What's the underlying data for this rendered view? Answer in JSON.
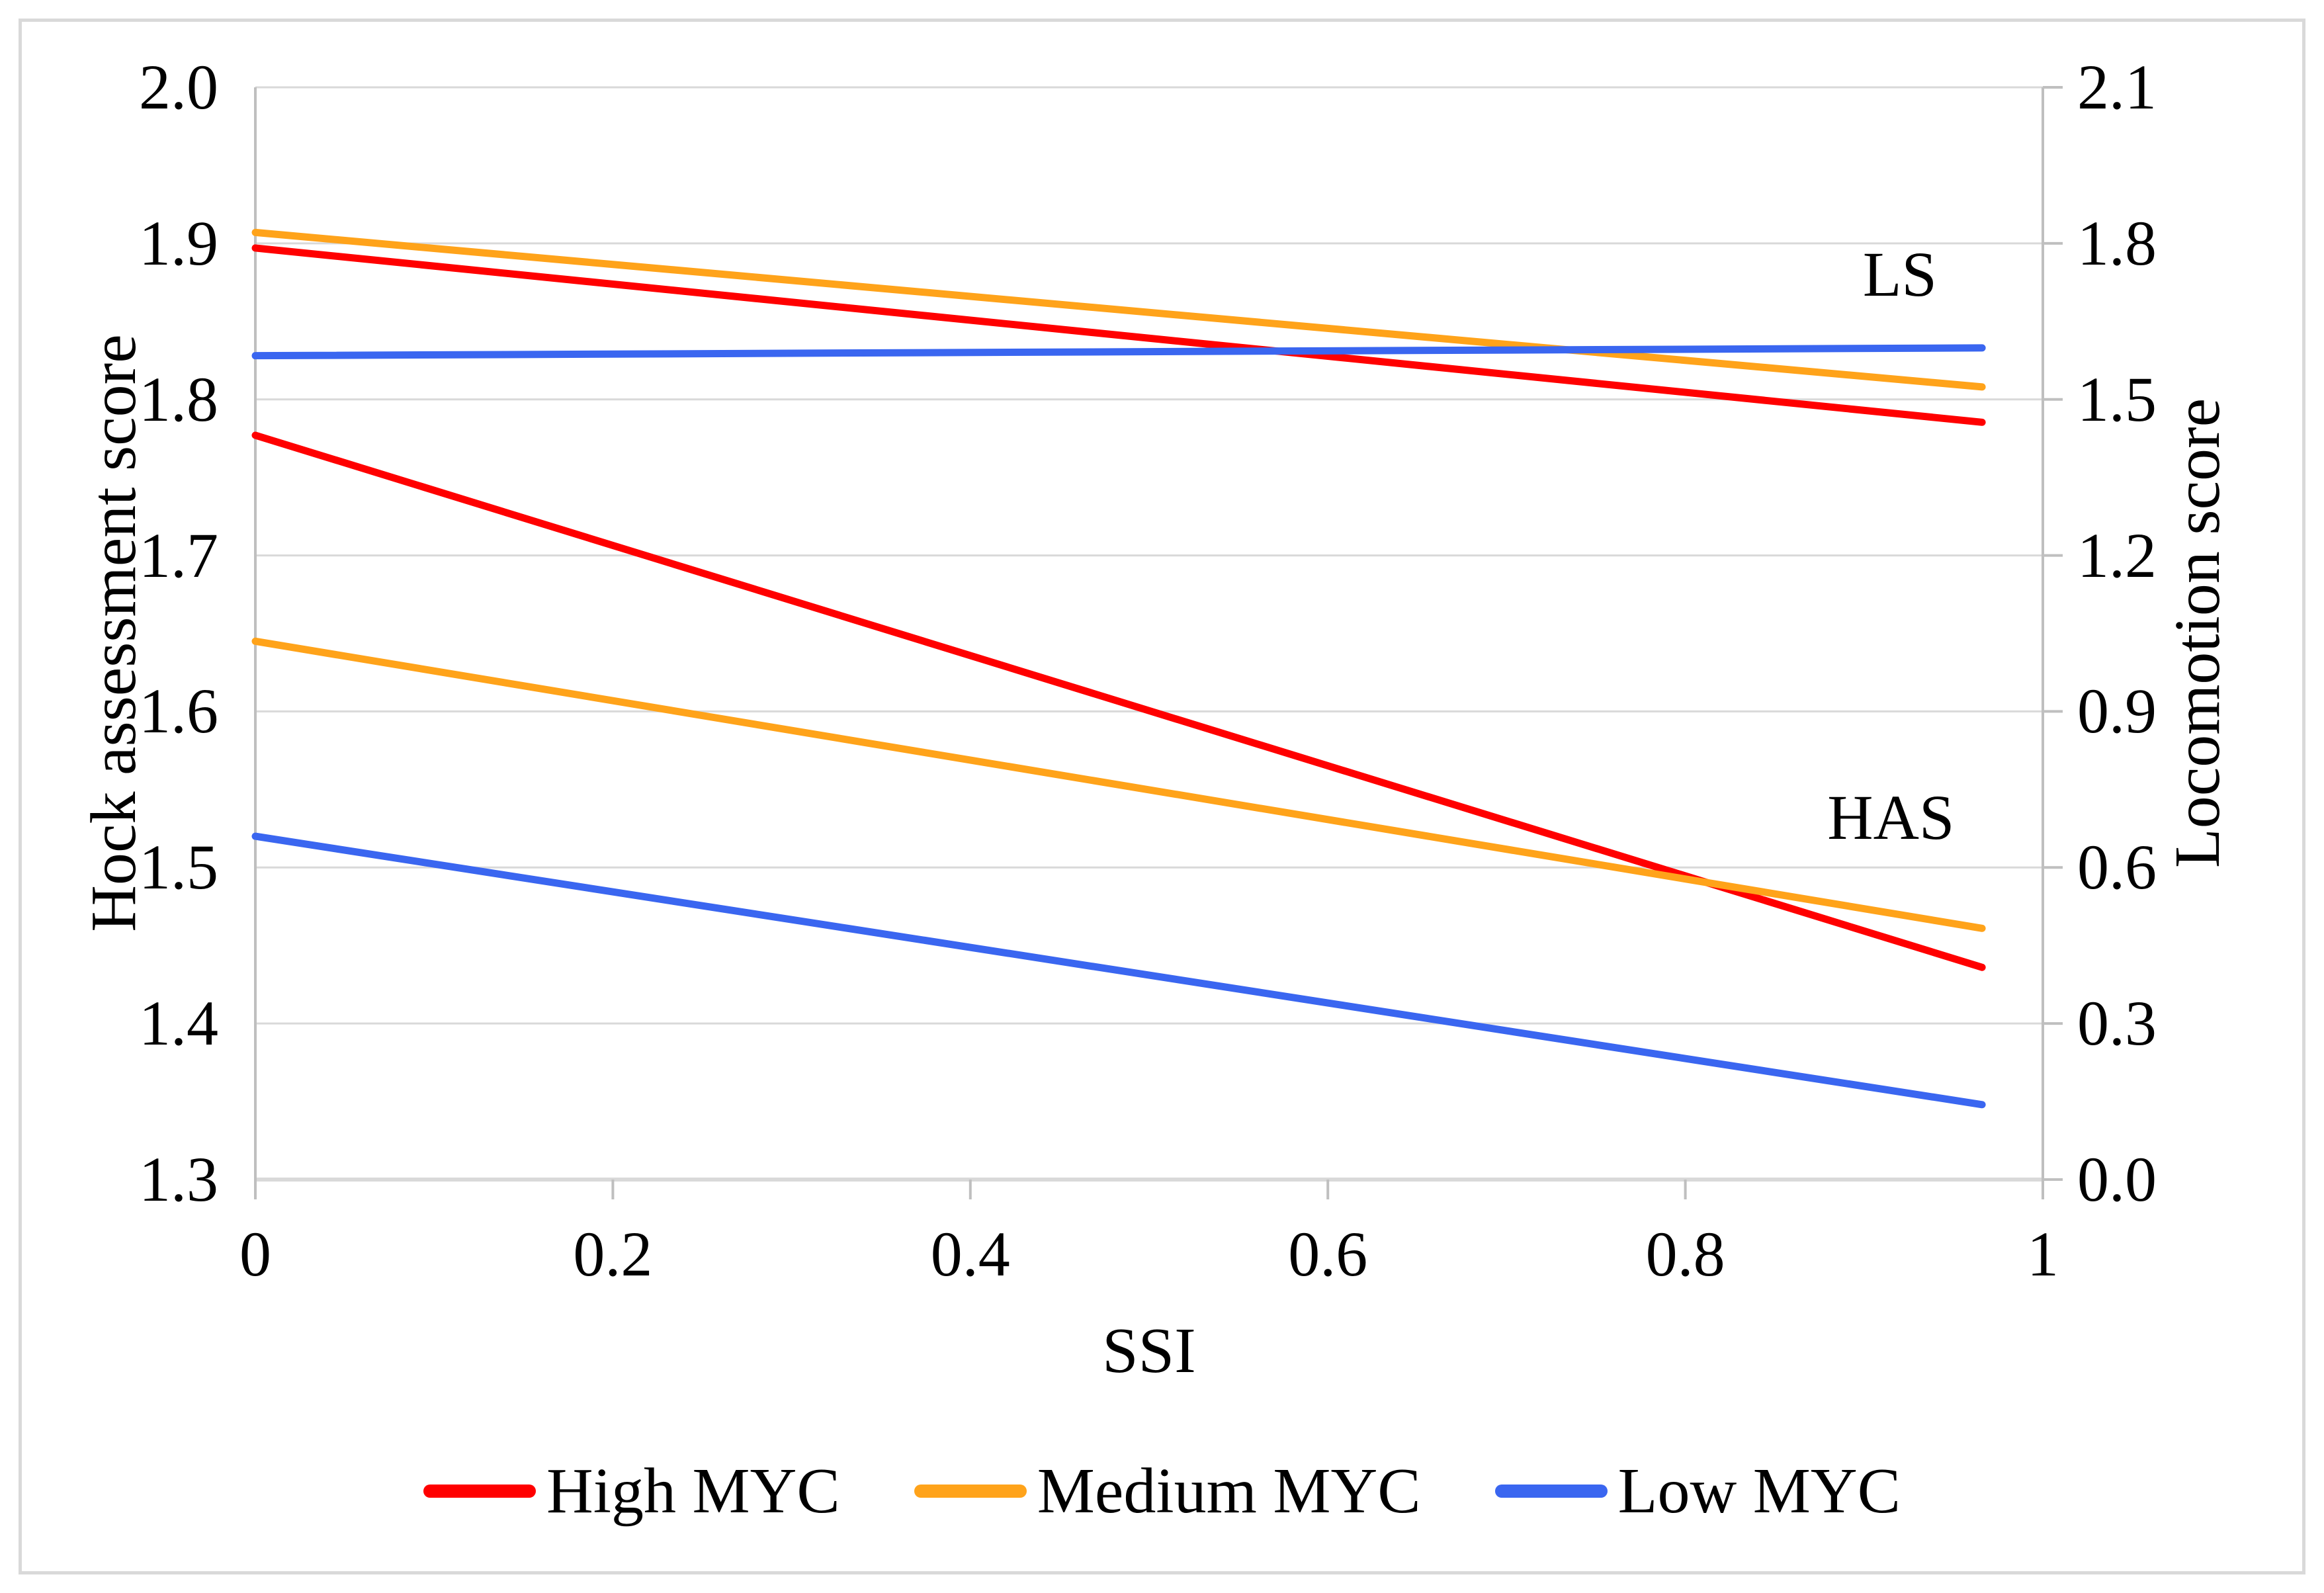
{
  "figure_title": "",
  "left_axis": {
    "title": "Hock assessment score",
    "min": 1.3,
    "max": 2.0,
    "tick_step": 0.1,
    "ticks": [
      "2.0",
      "1.9",
      "1.8",
      "1.7",
      "1.6",
      "1.5",
      "1.4",
      "1.3"
    ]
  },
  "right_axis": {
    "title": "Locomotion score",
    "min": 0.0,
    "max": 2.1,
    "tick_step": 0.3,
    "ticks": [
      "2.1",
      "1.8",
      "1.5",
      "1.2",
      "0.9",
      "0.6",
      "0.3",
      "0.0"
    ]
  },
  "x_axis": {
    "title": "SSI",
    "min": 0,
    "max": 1,
    "ticks": [
      "0",
      "0.2",
      "0.4",
      "0.6",
      "0.8",
      "1"
    ]
  },
  "colors": {
    "red": "#FF0000",
    "orange": "#FFA31A",
    "blue": "#3A66F0",
    "gridline": "#D9D9D9",
    "axis_line": "#BFBFBF",
    "outer_border": "#D9D9D9",
    "text": "#000000"
  },
  "legend": [
    {
      "label": "High MYC",
      "color": "red"
    },
    {
      "label": "Medium MYC",
      "color": "orange"
    },
    {
      "label": "Low MYC",
      "color": "blue"
    }
  ],
  "chart_data": {
    "type": "line",
    "title": "",
    "xlabel": "SSI",
    "ylabel_left": "Hock assessment score",
    "ylabel_right": "Locomotion score",
    "xlim": [
      0,
      1
    ],
    "left_ylim": [
      1.3,
      2.0
    ],
    "right_ylim": [
      0.0,
      2.1
    ],
    "grid": "horizontal gridlines every 0.1 left-axis units (= 0.3 right-axis units)",
    "legend_position": "bottom-center",
    "line_groups": [
      "LS (locomotion score, right axis, upper three lines)",
      "HAS (hock assessment score, left axis, lower three lines)"
    ],
    "series": [
      {
        "name": "LS High MYC",
        "group": "LS",
        "legend": "High MYC",
        "color": "red",
        "axis": "right",
        "points": [
          [
            0,
            1.791
          ],
          [
            0.966,
            1.456
          ]
        ]
      },
      {
        "name": "LS Medium MYC",
        "group": "LS",
        "legend": "Medium MYC",
        "color": "orange",
        "axis": "right",
        "points": [
          [
            0,
            1.821
          ],
          [
            0.966,
            1.524
          ]
        ]
      },
      {
        "name": "LS Low MYC",
        "group": "LS",
        "legend": "Low MYC",
        "color": "blue",
        "axis": "right",
        "points": [
          [
            0,
            1.584
          ],
          [
            0.966,
            1.599
          ]
        ]
      },
      {
        "name": "HAS High MYC",
        "group": "HAS",
        "legend": "High MYC",
        "color": "red",
        "axis": "left",
        "points": [
          [
            0,
            1.777
          ],
          [
            0.966,
            1.436
          ]
        ]
      },
      {
        "name": "HAS Medium MYC",
        "group": "HAS",
        "legend": "Medium MYC",
        "color": "orange",
        "axis": "left",
        "points": [
          [
            0,
            1.645
          ],
          [
            0.966,
            1.461
          ]
        ]
      },
      {
        "name": "HAS Low MYC",
        "group": "HAS",
        "legend": "Low MYC",
        "color": "blue",
        "axis": "left",
        "points": [
          [
            0,
            1.52
          ],
          [
            0.966,
            1.348
          ]
        ]
      }
    ],
    "annotations": [
      {
        "text": "LS",
        "x": 0.92,
        "y_left": 1.88
      },
      {
        "text": "HAS",
        "x": 0.915,
        "y_left": 1.532
      }
    ]
  }
}
